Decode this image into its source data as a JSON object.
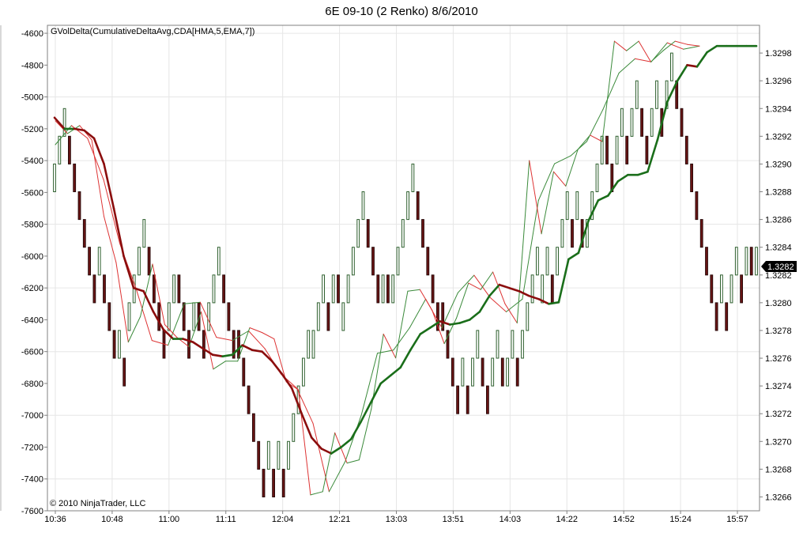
{
  "chart_data": {
    "type": "line",
    "title": "6E 09-10 (2 Renko)  8/6/2010",
    "indicator_label": "GVolDelta(CumulativeDeltaAvg,CDA[HMA,5,EMA,7])",
    "copyright": "© 2010 NinjaTrader, LLC",
    "price_badge": "1.3282",
    "x_tick_labels": [
      "10:36",
      "10:48",
      "11:00",
      "11:11",
      "12:04",
      "12:21",
      "13:03",
      "13:51",
      "14:03",
      "14:22",
      "14:52",
      "15:24",
      "15:57"
    ],
    "left_axis": {
      "ticks": [
        "-4600",
        "-4800",
        "-5000",
        "-5200",
        "-5400",
        "-5600",
        "-5800",
        "-6000",
        "-6200",
        "-6400",
        "-6600",
        "-6800",
        "-7000",
        "-7200",
        "-7400",
        "-7600"
      ],
      "range": [
        -7600,
        -4550
      ]
    },
    "right_axis": {
      "ticks": [
        "1.3298",
        "1.3296",
        "1.3294",
        "1.3292",
        "1.3290",
        "1.3288",
        "1.3286",
        "1.3284",
        "1.3282",
        "1.3280",
        "1.3278",
        "1.3276",
        "1.3274",
        "1.3272",
        "1.3270",
        "1.3268",
        "1.3266"
      ],
      "range": [
        1.3265,
        1.33
      ]
    },
    "grid": true,
    "colors": {
      "up": "#2d5f2d",
      "down": "#6b1414",
      "cda_up": "#1a6e1a",
      "cda_down": "#8b0d0d",
      "thin_up": "#3a8a3a",
      "thin_down": "#dd3333"
    },
    "renko_bricks_right_axis": [
      [
        1.3288,
        1.329
      ],
      [
        1.329,
        1.3292
      ],
      [
        1.3292,
        1.3294
      ],
      [
        1.3292,
        1.329
      ],
      [
        1.329,
        1.3288
      ],
      [
        1.3288,
        1.3286
      ],
      [
        1.3286,
        1.3284
      ],
      [
        1.3284,
        1.3282
      ],
      [
        1.3282,
        1.328
      ],
      [
        1.3282,
        1.3284
      ],
      [
        1.3282,
        1.328
      ],
      [
        1.328,
        1.3278
      ],
      [
        1.3278,
        1.3276
      ],
      [
        1.3276,
        1.3278
      ],
      [
        1.3276,
        1.3274
      ],
      [
        1.3278,
        1.328
      ],
      [
        1.328,
        1.3282
      ],
      [
        1.3282,
        1.3284
      ],
      [
        1.3284,
        1.3286
      ],
      [
        1.3284,
        1.3282
      ],
      [
        1.3282,
        1.328
      ],
      [
        1.328,
        1.3278
      ],
      [
        1.3278,
        1.3276
      ],
      [
        1.3278,
        1.328
      ],
      [
        1.328,
        1.3282
      ],
      [
        1.3282,
        1.328
      ],
      [
        1.328,
        1.3278
      ],
      [
        1.3278,
        1.3276
      ],
      [
        1.3278,
        1.328
      ],
      [
        1.328,
        1.3278
      ],
      [
        1.3278,
        1.3276
      ],
      [
        1.3278,
        1.328
      ],
      [
        1.328,
        1.3282
      ],
      [
        1.3282,
        1.3284
      ],
      [
        1.3282,
        1.328
      ],
      [
        1.328,
        1.3278
      ],
      [
        1.3278,
        1.3276
      ],
      [
        1.3278,
        1.3276
      ],
      [
        1.3276,
        1.3274
      ],
      [
        1.3274,
        1.3272
      ],
      [
        1.3272,
        1.327
      ],
      [
        1.327,
        1.3268
      ],
      [
        1.3268,
        1.3266
      ],
      [
        1.3268,
        1.327
      ],
      [
        1.3268,
        1.3266
      ],
      [
        1.3268,
        1.327
      ],
      [
        1.3268,
        1.3266
      ],
      [
        1.3268,
        1.327
      ],
      [
        1.327,
        1.3272
      ],
      [
        1.3272,
        1.3274
      ],
      [
        1.3274,
        1.3276
      ],
      [
        1.3276,
        1.3278
      ],
      [
        1.3276,
        1.3278
      ],
      [
        1.3278,
        1.328
      ],
      [
        1.328,
        1.3282
      ],
      [
        1.328,
        1.3278
      ],
      [
        1.328,
        1.3282
      ],
      [
        1.3282,
        1.328
      ],
      [
        1.3278,
        1.328
      ],
      [
        1.328,
        1.3282
      ],
      [
        1.3282,
        1.3284
      ],
      [
        1.3284,
        1.3286
      ],
      [
        1.3286,
        1.3288
      ],
      [
        1.3286,
        1.3284
      ],
      [
        1.3284,
        1.3282
      ],
      [
        1.3282,
        1.328
      ],
      [
        1.328,
        1.3282
      ],
      [
        1.3282,
        1.328
      ],
      [
        1.328,
        1.3282
      ],
      [
        1.3282,
        1.3284
      ],
      [
        1.3284,
        1.3286
      ],
      [
        1.3286,
        1.3288
      ],
      [
        1.3288,
        1.329
      ],
      [
        1.3288,
        1.3286
      ],
      [
        1.3286,
        1.3284
      ],
      [
        1.3284,
        1.3282
      ],
      [
        1.3282,
        1.328
      ],
      [
        1.328,
        1.3278
      ],
      [
        1.328,
        1.3278
      ],
      [
        1.3278,
        1.3276
      ],
      [
        1.3276,
        1.3274
      ],
      [
        1.3274,
        1.3272
      ],
      [
        1.3274,
        1.3276
      ],
      [
        1.3274,
        1.3272
      ],
      [
        1.3274,
        1.3276
      ],
      [
        1.3276,
        1.3278
      ],
      [
        1.3276,
        1.3274
      ],
      [
        1.3274,
        1.3272
      ],
      [
        1.3274,
        1.3276
      ],
      [
        1.3276,
        1.3278
      ],
      [
        1.3276,
        1.3274
      ],
      [
        1.3274,
        1.3276
      ],
      [
        1.3276,
        1.3278
      ],
      [
        1.3276,
        1.3274
      ],
      [
        1.3276,
        1.3278
      ],
      [
        1.3278,
        1.328
      ],
      [
        1.328,
        1.3282
      ],
      [
        1.3282,
        1.3284
      ],
      [
        1.328,
        1.3282
      ],
      [
        1.3282,
        1.3284
      ],
      [
        1.3282,
        1.328
      ],
      [
        1.3282,
        1.3284
      ],
      [
        1.3284,
        1.3286
      ],
      [
        1.3286,
        1.3288
      ],
      [
        1.3286,
        1.3284
      ],
      [
        1.3286,
        1.3288
      ],
      [
        1.3286,
        1.3284
      ],
      [
        1.3284,
        1.3286
      ],
      [
        1.3286,
        1.3288
      ],
      [
        1.3288,
        1.329
      ],
      [
        1.329,
        1.3292
      ],
      [
        1.3292,
        1.329
      ],
      [
        1.329,
        1.3288
      ],
      [
        1.329,
        1.3292
      ],
      [
        1.3292,
        1.3294
      ],
      [
        1.3292,
        1.329
      ],
      [
        1.3292,
        1.3294
      ],
      [
        1.3294,
        1.3296
      ],
      [
        1.3294,
        1.3292
      ],
      [
        1.3292,
        1.329
      ],
      [
        1.3292,
        1.3294
      ],
      [
        1.3294,
        1.3296
      ],
      [
        1.3294,
        1.3292
      ],
      [
        1.3294,
        1.3296
      ],
      [
        1.3296,
        1.3298
      ],
      [
        1.3296,
        1.3294
      ],
      [
        1.3294,
        1.3292
      ],
      [
        1.3292,
        1.329
      ],
      [
        1.329,
        1.3288
      ],
      [
        1.3288,
        1.3286
      ],
      [
        1.3286,
        1.3284
      ],
      [
        1.3284,
        1.3282
      ],
      [
        1.3282,
        1.328
      ],
      [
        1.328,
        1.3278
      ],
      [
        1.328,
        1.3282
      ],
      [
        1.328,
        1.3278
      ],
      [
        1.328,
        1.3282
      ],
      [
        1.3282,
        1.3284
      ],
      [
        1.3282,
        1.328
      ],
      [
        1.3282,
        1.3284
      ],
      [
        1.3284,
        1.3282
      ],
      [
        1.3282,
        1.3284
      ]
    ],
    "series": [
      {
        "values": [
          -5130,
          -5200,
          -5200,
          -5210,
          -5260,
          -5420,
          -5700,
          -6000,
          -6200,
          -6220,
          -6350,
          -6460,
          -6520,
          -6520,
          -6540,
          -6580,
          -6620,
          -6630,
          -6620,
          -6560,
          -6590,
          -6600,
          -6660,
          -6740,
          -6830,
          -6990,
          -7140,
          -7210,
          -7240,
          -7200,
          -7150,
          -7040,
          -6920,
          -6800,
          -6750,
          -6700,
          -6590,
          -6490,
          -6450,
          -6410,
          -6430,
          -6420,
          -6400,
          -6350,
          -6250,
          -6180,
          -6200,
          -6220,
          -6250,
          -6270,
          -6300,
          -6290,
          -6020,
          -5980,
          -5780,
          -5650,
          -5620,
          -5530,
          -5490,
          -5490,
          -5470,
          -5270,
          -5030,
          -4900,
          -4800,
          -4810,
          -4720,
          -4680,
          -4680,
          -4680,
          -4680,
          -4680
        ]
      },
      {
        "values": [
          -5150,
          -5230,
          -5180,
          -5270,
          -5750,
          -6040,
          -6540,
          -6380,
          -6050,
          -6430,
          -6510,
          -6570,
          -6350,
          -6710,
          -6660,
          -6660,
          -6450,
          -6480,
          -6520,
          -6790,
          -6840,
          -7500,
          -7480,
          -7110,
          -7300,
          -7280,
          -6960,
          -6490,
          -6640,
          -6220,
          -6210,
          -6340,
          -6550,
          -6390,
          -6170,
          -6210,
          -6100,
          -6300,
          -6420,
          -5400,
          -5860,
          -5470,
          -5560,
          -5330,
          -5240,
          -5280,
          -4650,
          -4710,
          -4650,
          -4780,
          -4710,
          -4650,
          -4670,
          -4680
        ]
      },
      {
        "values": [
          -5300,
          -5180,
          -5260,
          -5520,
          -5920,
          -6200,
          -6530,
          -6560,
          -6300,
          -6290,
          -6510,
          -6530,
          -6470,
          -6580,
          -6740,
          -6830,
          -7050,
          -7480,
          -7290,
          -7000,
          -6610,
          -6590,
          -6450,
          -6270,
          -6450,
          -6230,
          -6120,
          -6260,
          -6350,
          -6270,
          -5650,
          -5420,
          -5370,
          -5280,
          -5080,
          -4850,
          -4760,
          -4780,
          -4660,
          -4700,
          -4680
        ]
      }
    ]
  }
}
